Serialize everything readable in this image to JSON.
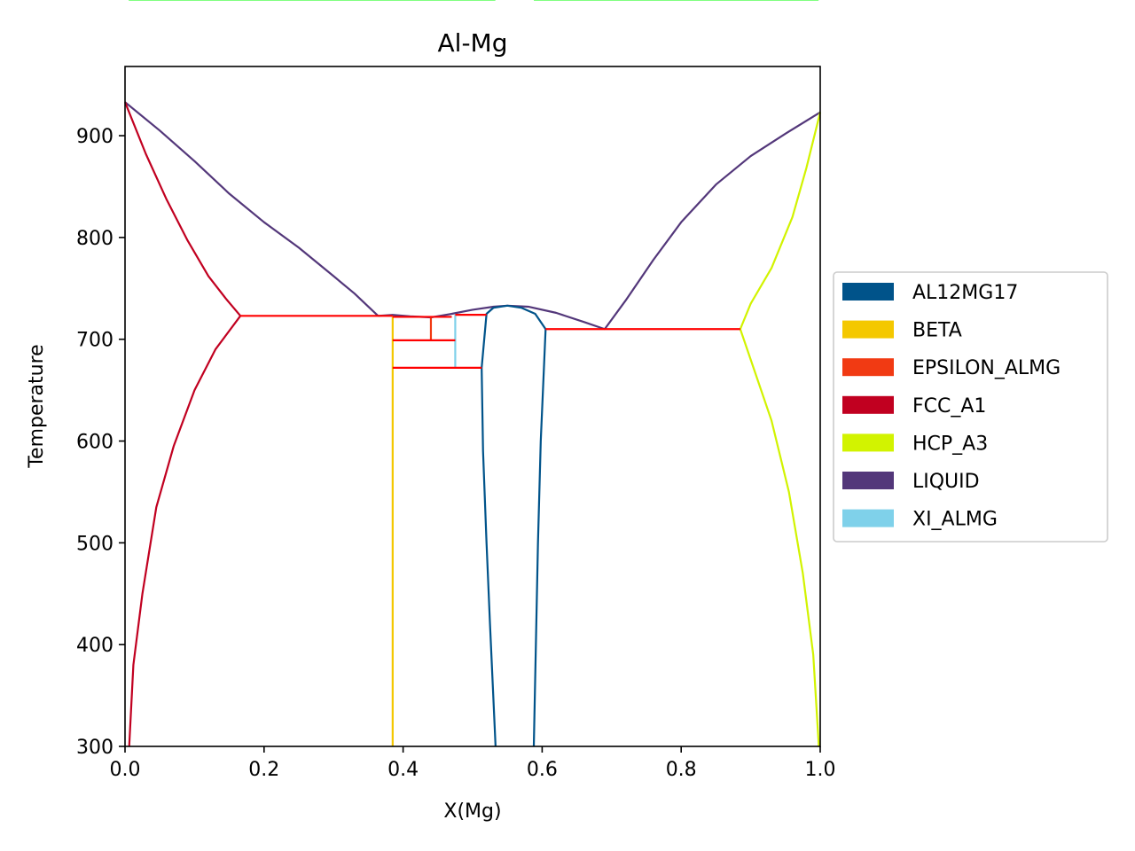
{
  "chart_data": {
    "type": "phase_diagram",
    "title": "Al-Mg",
    "xlabel": "X(Mg)",
    "ylabel": "Temperature",
    "xlim": [
      0.0,
      1.0
    ],
    "ylim": [
      300,
      968
    ],
    "xticks": [
      0.0,
      0.2,
      0.4,
      0.6,
      0.8,
      1.0
    ],
    "xtick_labels": [
      "0.0",
      "0.2",
      "0.4",
      "0.6",
      "0.8",
      "1.0"
    ],
    "yticks": [
      300,
      400,
      500,
      600,
      700,
      800,
      900
    ],
    "ytick_labels": [
      "300",
      "400",
      "500",
      "600",
      "700",
      "800",
      "900"
    ],
    "legend_position": "outside-right",
    "legend": [
      {
        "name": "AL12MG17",
        "color": "#00538a"
      },
      {
        "name": "BETA",
        "color": "#f4c800"
      },
      {
        "name": "EPSILON_ALMG",
        "color": "#f13a13"
      },
      {
        "name": "FCC_A1",
        "color": "#c10020"
      },
      {
        "name": "HCP_A3",
        "color": "#d2f300"
      },
      {
        "name": "LIQUID",
        "color": "#53377a"
      },
      {
        "name": "XI_ALMG",
        "color": "#7fd1ea"
      }
    ],
    "tieline_color": "#00ff00",
    "invariant_color": "#ff0000",
    "phase_boundaries": [
      {
        "phase": "LIQUID",
        "points": [
          [
            0.0,
            933
          ],
          [
            0.05,
            905
          ],
          [
            0.1,
            875
          ],
          [
            0.15,
            843
          ],
          [
            0.2,
            815
          ],
          [
            0.25,
            790
          ],
          [
            0.3,
            762
          ],
          [
            0.33,
            745
          ],
          [
            0.364,
            723
          ]
        ]
      },
      {
        "phase": "FCC_A1",
        "points": [
          [
            0.0,
            933
          ],
          [
            0.03,
            882
          ],
          [
            0.06,
            837
          ],
          [
            0.09,
            797
          ],
          [
            0.12,
            762
          ],
          [
            0.145,
            740
          ],
          [
            0.166,
            723
          ]
        ]
      },
      {
        "phase": "FCC_A1",
        "points": [
          [
            0.166,
            723
          ],
          [
            0.13,
            690
          ],
          [
            0.1,
            650
          ],
          [
            0.07,
            595
          ],
          [
            0.045,
            535
          ],
          [
            0.025,
            450
          ],
          [
            0.012,
            380
          ],
          [
            0.006,
            300
          ]
        ]
      },
      {
        "phase": "LIQUID",
        "points": [
          [
            0.364,
            723
          ],
          [
            0.385,
            724
          ],
          [
            0.41,
            722.5
          ],
          [
            0.44,
            721.5
          ]
        ]
      },
      {
        "phase": "LIQUID",
        "points": [
          [
            0.44,
            721.5
          ],
          [
            0.47,
            725
          ],
          [
            0.5,
            729
          ],
          [
            0.53,
            732
          ],
          [
            0.55,
            733
          ],
          [
            0.58,
            732
          ],
          [
            0.62,
            726
          ],
          [
            0.66,
            717
          ],
          [
            0.69,
            710
          ]
        ]
      },
      {
        "phase": "LIQUID",
        "points": [
          [
            0.69,
            710
          ],
          [
            0.72,
            738
          ],
          [
            0.76,
            778
          ],
          [
            0.8,
            815
          ],
          [
            0.85,
            852
          ],
          [
            0.9,
            880
          ],
          [
            0.95,
            902
          ],
          [
            1.0,
            923
          ]
        ]
      },
      {
        "phase": "HCP_A3",
        "points": [
          [
            1.0,
            923
          ],
          [
            0.98,
            868
          ],
          [
            0.96,
            820
          ],
          [
            0.93,
            770
          ],
          [
            0.9,
            735
          ],
          [
            0.885,
            710
          ]
        ]
      },
      {
        "phase": "HCP_A3",
        "points": [
          [
            0.885,
            710
          ],
          [
            0.905,
            670
          ],
          [
            0.93,
            620
          ],
          [
            0.955,
            550
          ],
          [
            0.975,
            470
          ],
          [
            0.99,
            390
          ],
          [
            0.998,
            300
          ]
        ]
      },
      {
        "phase": "AL12MG17",
        "points": [
          [
            0.513,
            672
          ],
          [
            0.52,
            725
          ],
          [
            0.53,
            731
          ],
          [
            0.55,
            733
          ],
          [
            0.57,
            731
          ],
          [
            0.59,
            725
          ],
          [
            0.605,
            710
          ]
        ]
      },
      {
        "phase": "AL12MG17",
        "points": [
          [
            0.513,
            672
          ],
          [
            0.515,
            590
          ],
          [
            0.52,
            500
          ],
          [
            0.525,
            420
          ],
          [
            0.529,
            360
          ],
          [
            0.533,
            300
          ]
        ]
      },
      {
        "phase": "AL12MG17",
        "points": [
          [
            0.605,
            710
          ],
          [
            0.598,
            600
          ],
          [
            0.594,
            500
          ],
          [
            0.591,
            400
          ],
          [
            0.588,
            300
          ]
        ]
      },
      {
        "phase": "BETA",
        "points": [
          [
            0.385,
            722
          ],
          [
            0.385,
            300
          ]
        ]
      },
      {
        "phase": "EPSILON_ALMG",
        "points": [
          [
            0.44,
            721
          ],
          [
            0.44,
            699
          ]
        ]
      },
      {
        "phase": "XI_ALMG",
        "points": [
          [
            0.475,
            724
          ],
          [
            0.475,
            672
          ]
        ]
      }
    ],
    "invariant_lines": [
      {
        "y": 723,
        "x": [
          0.166,
          0.385
        ]
      },
      {
        "y": 722,
        "x": [
          0.385,
          0.47
        ]
      },
      {
        "y": 724,
        "x": [
          0.475,
          0.52
        ]
      },
      {
        "y": 699,
        "x": [
          0.385,
          0.475
        ]
      },
      {
        "y": 672,
        "x": [
          0.385,
          0.513
        ]
      },
      {
        "y": 710,
        "x": [
          0.605,
          0.885
        ]
      }
    ]
  }
}
